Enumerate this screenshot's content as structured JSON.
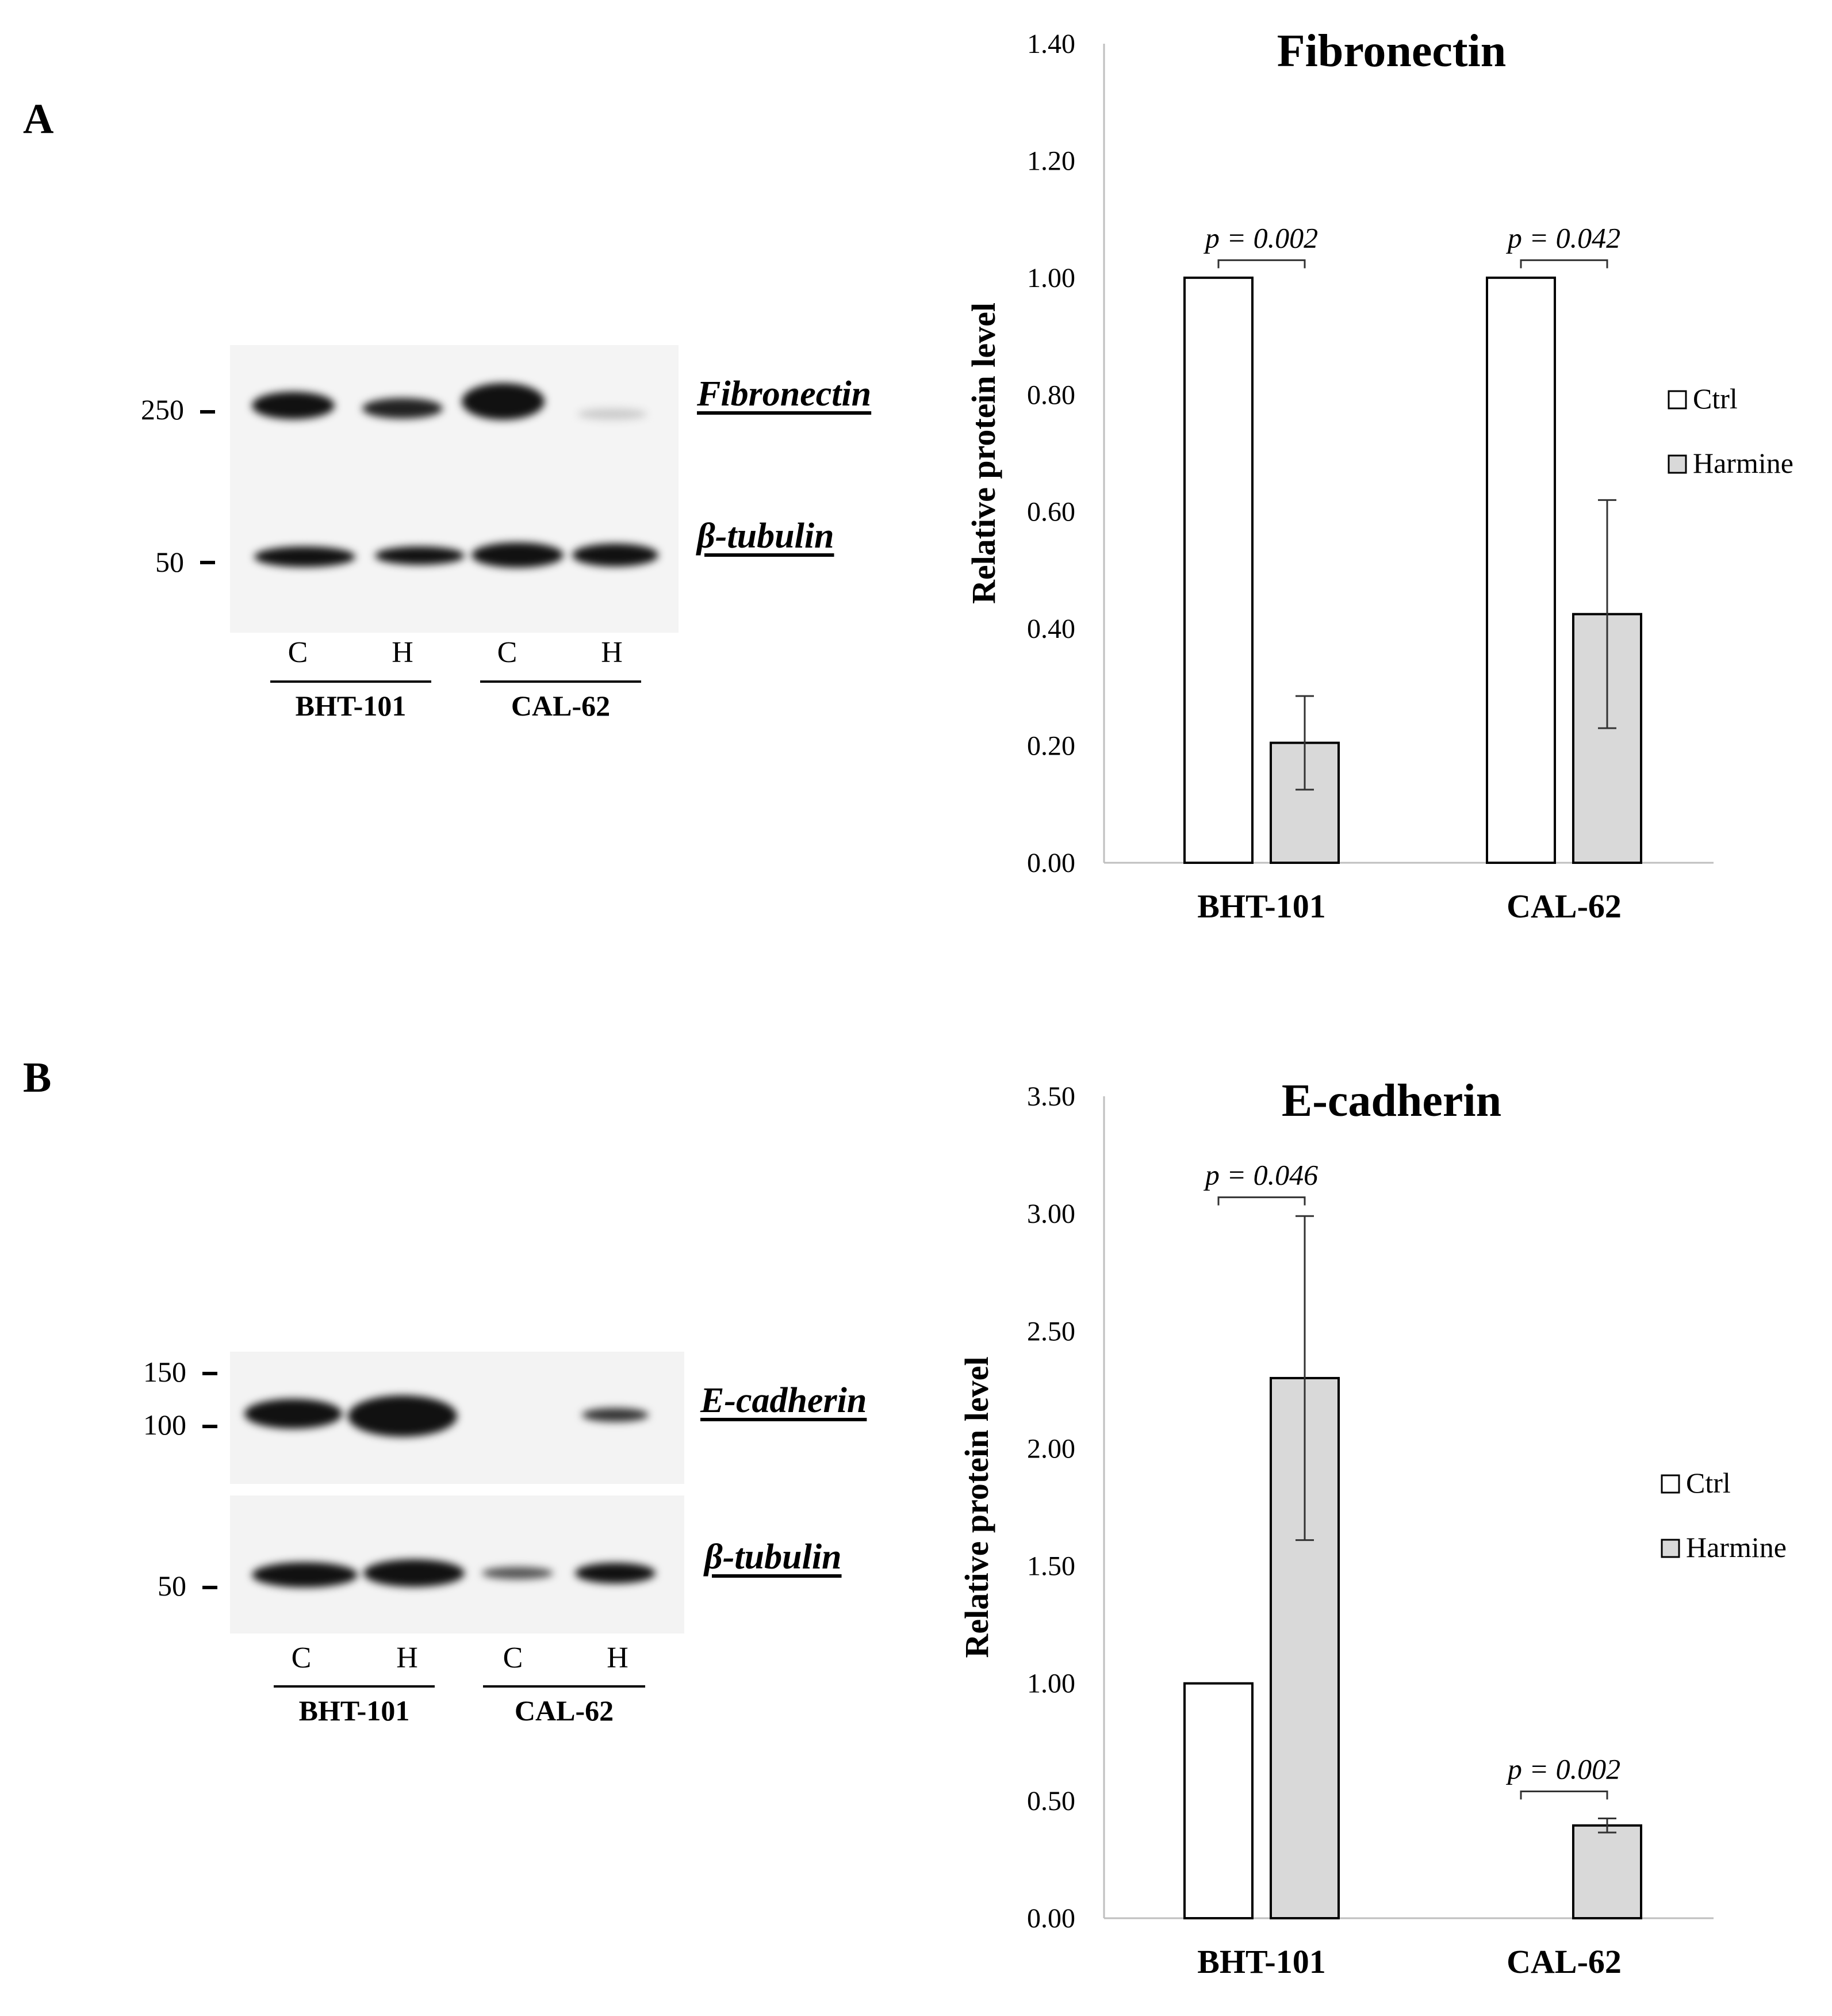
{
  "panels": [
    {
      "letter": "A",
      "blot": {
        "rows": [
          {
            "protein": "Fibronectin",
            "marker": "250"
          },
          {
            "protein": "β-tubulin",
            "marker": "50"
          }
        ],
        "lanes": [
          "C",
          "H",
          "C",
          "H"
        ],
        "groups": [
          "BHT-101",
          "CAL-62"
        ]
      }
    },
    {
      "letter": "B",
      "blot": {
        "rows": [
          {
            "protein": "E-cadherin",
            "markers": [
              "150",
              "100"
            ]
          },
          {
            "protein": "β-tubulin",
            "marker": "50"
          }
        ],
        "lanes": [
          "C",
          "H",
          "C",
          "H"
        ],
        "groups": [
          "BHT-101",
          "CAL-62"
        ]
      }
    }
  ],
  "colors": {
    "ctrl": "#ffffff",
    "harmine": "#d9d9d9",
    "axis": "#bfbfbf"
  },
  "chart_data": [
    {
      "type": "bar",
      "title": "Fibronectin",
      "ylabel": "Relative protein level",
      "categories": [
        "BHT-101",
        "CAL-62"
      ],
      "ylim": [
        0,
        1.4
      ],
      "yticks": [
        "0.00",
        "0.20",
        "0.40",
        "0.60",
        "0.80",
        "1.00",
        "1.20",
        "1.40"
      ],
      "series": [
        {
          "name": "Ctrl",
          "values": [
            1.0,
            1.0
          ],
          "errors": [
            null,
            null
          ]
        },
        {
          "name": "Harmine",
          "values": [
            0.205,
            0.425
          ],
          "errors": [
            0.08,
            0.195
          ]
        }
      ],
      "annotations": [
        {
          "category": "BHT-101",
          "text": "p = 0.002",
          "level": 1.03
        },
        {
          "category": "CAL-62",
          "text": "p = 0.042",
          "level": 1.03
        }
      ],
      "legend": "right"
    },
    {
      "type": "bar",
      "title": "E-cadherin",
      "ylabel": "Relative protein level",
      "categories": [
        "BHT-101",
        "CAL-62"
      ],
      "ylim": [
        0,
        3.5
      ],
      "yticks": [
        "0.00",
        "0.50",
        "1.00",
        "1.50",
        "2.00",
        "2.50",
        "3.00",
        "3.50"
      ],
      "series": [
        {
          "name": "Ctrl",
          "values": [
            1.0,
            0.0
          ],
          "errors": [
            null,
            null
          ]
        },
        {
          "name": "Harmine",
          "values": [
            2.3,
            0.395
          ],
          "errors": [
            0.69,
            0.03
          ]
        }
      ],
      "annotations": [
        {
          "category": "BHT-101",
          "text": "p = 0.046",
          "level": 3.07
        },
        {
          "category": "CAL-62",
          "text": "p = 0.002",
          "level": 0.54
        }
      ],
      "legend": "right"
    }
  ]
}
